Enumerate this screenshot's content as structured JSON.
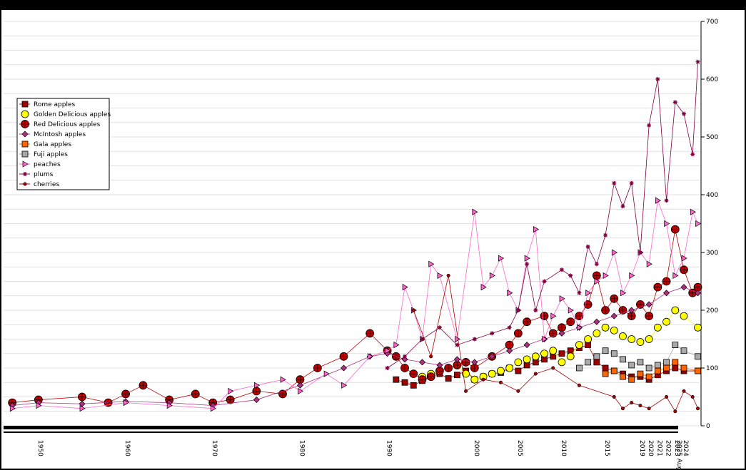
{
  "chart_data": {
    "type": "line",
    "title": "",
    "xlabel": "",
    "ylabel": "",
    "ylim": [
      0,
      700
    ],
    "y_ticks": [
      0,
      100,
      200,
      300,
      400,
      500,
      600,
      700
    ],
    "x_tick_labels": [
      "1950",
      "1960",
      "1970",
      "1980",
      "1990",
      "2000",
      "2005",
      "2010",
      "2015",
      "2019",
      "2020",
      "2021",
      "2022",
      "2023",
      "2024",
      "2025 Aug"
    ],
    "grid": true,
    "legend_position": "upper-left",
    "colors": {
      "rome": "#a00000",
      "golden": "#ffff00",
      "red_delicious": "#c00000",
      "mcintosh": "#b03080",
      "gala": "#ff6600",
      "fuji": "#aaaaaa",
      "peaches": "#ff66cc",
      "plums": "#800040",
      "cherries": "#aa0000"
    },
    "series": [
      {
        "name": "Rome apples",
        "marker": "square",
        "color": "#a00000",
        "x": [
          1991,
          1992,
          1993,
          1994,
          1995,
          1996,
          1997,
          1998,
          1999,
          2000,
          2001,
          2002,
          2003,
          2004,
          2005,
          2006,
          2007,
          2008,
          2009,
          2010,
          2011,
          2012,
          2013,
          2014,
          2015,
          2016,
          2017,
          2018,
          2019,
          2020,
          2021,
          2022,
          2023,
          2024,
          2025.6
        ],
        "y": [
          80,
          75,
          70,
          78,
          85,
          90,
          82,
          88,
          95,
          80,
          85,
          90,
          92,
          100,
          95,
          105,
          110,
          115,
          120,
          125,
          130,
          135,
          140,
          110,
          100,
          95,
          90,
          85,
          85,
          80,
          88,
          95,
          100,
          95,
          95
        ]
      },
      {
        "name": "Golden Delicious apples",
        "marker": "circle",
        "color": "#ffff00",
        "x": [
          1994,
          1995,
          1996,
          1997,
          1998,
          1999,
          2000,
          2001,
          2002,
          2003,
          2004,
          2005,
          2006,
          2007,
          2008,
          2009,
          2010,
          2011,
          2012,
          2013,
          2014,
          2015,
          2016,
          2017,
          2018,
          2019,
          2020,
          2021,
          2022,
          2023,
          2024,
          2025.6
        ],
        "y": [
          85,
          90,
          95,
          100,
          105,
          90,
          80,
          85,
          90,
          95,
          100,
          110,
          115,
          120,
          125,
          130,
          110,
          120,
          140,
          150,
          160,
          170,
          165,
          155,
          150,
          145,
          150,
          170,
          180,
          200,
          190,
          170
        ]
      },
      {
        "name": "Red Delicious apples",
        "marker": "circle-cross",
        "color": "#c00000",
        "x": [
          1947,
          1950,
          1955,
          1958,
          1960,
          1962,
          1965,
          1968,
          1970,
          1972,
          1975,
          1978,
          1980,
          1982,
          1985,
          1988,
          1990,
          1991,
          1992,
          1993,
          1994,
          1995,
          1996,
          1997,
          1998,
          1999,
          2000,
          2002,
          2004,
          2005,
          2006,
          2008,
          2009,
          2010,
          2011,
          2012,
          2013,
          2014,
          2015,
          2016,
          2017,
          2018,
          2019,
          2020,
          2021,
          2022,
          2023,
          2024,
          2025,
          2025.6
        ],
        "y": [
          40,
          45,
          50,
          40,
          55,
          70,
          45,
          55,
          40,
          45,
          60,
          55,
          80,
          100,
          120,
          160,
          130,
          120,
          100,
          90,
          80,
          85,
          95,
          100,
          105,
          110,
          100,
          120,
          140,
          160,
          180,
          190,
          160,
          170,
          180,
          190,
          210,
          260,
          200,
          220,
          200,
          190,
          210,
          190,
          240,
          250,
          340,
          270,
          230,
          240
        ]
      },
      {
        "name": "McIntosh apples",
        "marker": "diamond",
        "color": "#b03080",
        "x": [
          1947,
          1950,
          1955,
          1960,
          1965,
          1970,
          1975,
          1980,
          1985,
          1988,
          1990,
          1992,
          1994,
          1996,
          1998,
          2000,
          2002,
          2004,
          2006,
          2008,
          2010,
          2012,
          2014,
          2016,
          2018,
          2020,
          2022,
          2024,
          2025.6
        ],
        "y": [
          35,
          40,
          38,
          42,
          40,
          35,
          45,
          70,
          100,
          120,
          125,
          115,
          110,
          105,
          115,
          110,
          120,
          130,
          140,
          150,
          160,
          170,
          180,
          190,
          200,
          210,
          230,
          240,
          230
        ]
      },
      {
        "name": "Gala apples",
        "marker": "square",
        "color": "#ff6600",
        "x": [
          2015,
          2016,
          2017,
          2018,
          2019,
          2020,
          2021,
          2022,
          2023,
          2024,
          2025.6
        ],
        "y": [
          90,
          95,
          85,
          80,
          90,
          85,
          95,
          100,
          110,
          100,
          95
        ]
      },
      {
        "name": "Fuji apples",
        "marker": "square",
        "color": "#aaaaaa",
        "x": [
          2012,
          2013,
          2014,
          2015,
          2016,
          2017,
          2018,
          2019,
          2020,
          2021,
          2022,
          2023,
          2024,
          2025.6
        ],
        "y": [
          100,
          110,
          120,
          130,
          125,
          115,
          105,
          110,
          100,
          105,
          110,
          140,
          130,
          120
        ]
      },
      {
        "name": "peaches",
        "marker": "triangle-right",
        "color": "#ff66cc",
        "x": [
          1947,
          1950,
          1955,
          1960,
          1965,
          1970,
          1972,
          1975,
          1978,
          1980,
          1983,
          1985,
          1988,
          1990,
          1991,
          1992,
          1993,
          1994,
          1995,
          1996,
          1998,
          2000,
          2001,
          2002,
          2003,
          2004,
          2005,
          2006,
          2007,
          2008,
          2009,
          2010,
          2011,
          2012,
          2013,
          2014,
          2015,
          2016,
          2017,
          2018,
          2019,
          2020,
          2021,
          2022,
          2023,
          2024,
          2025,
          2025.6
        ],
        "y": [
          30,
          35,
          30,
          40,
          35,
          30,
          60,
          70,
          80,
          60,
          90,
          70,
          120,
          130,
          140,
          240,
          200,
          150,
          280,
          260,
          150,
          370,
          240,
          260,
          290,
          230,
          200,
          290,
          340,
          150,
          190,
          220,
          200,
          170,
          230,
          250,
          260,
          300,
          230,
          260,
          300,
          280,
          390,
          350,
          260,
          290,
          370,
          350
        ]
      },
      {
        "name": "plums",
        "marker": "asterisk",
        "color": "#800040",
        "x": [
          1990,
          1992,
          1994,
          1996,
          1998,
          2000,
          2002,
          2004,
          2005,
          2006,
          2007,
          2008,
          2010,
          2011,
          2012,
          2013,
          2014,
          2015,
          2016,
          2017,
          2018,
          2019,
          2020,
          2021,
          2022,
          2023,
          2024,
          2025,
          2025.6
        ],
        "y": [
          100,
          120,
          150,
          170,
          140,
          150,
          160,
          170,
          200,
          280,
          200,
          250,
          270,
          260,
          230,
          310,
          280,
          330,
          420,
          380,
          420,
          300,
          520,
          600,
          390,
          560,
          540,
          470,
          630
        ]
      },
      {
        "name": "cherries",
        "marker": "dot",
        "color": "#aa0000",
        "x": [
          1993,
          1995,
          1997,
          1999,
          2001,
          2003,
          2005,
          2007,
          2009,
          2012,
          2016,
          2017,
          2018,
          2019,
          2020,
          2022,
          2023,
          2024,
          2025,
          2025.6
        ],
        "y": [
          200,
          120,
          260,
          60,
          80,
          75,
          60,
          90,
          100,
          70,
          50,
          30,
          40,
          35,
          30,
          50,
          25,
          60,
          50,
          30
        ]
      }
    ]
  }
}
